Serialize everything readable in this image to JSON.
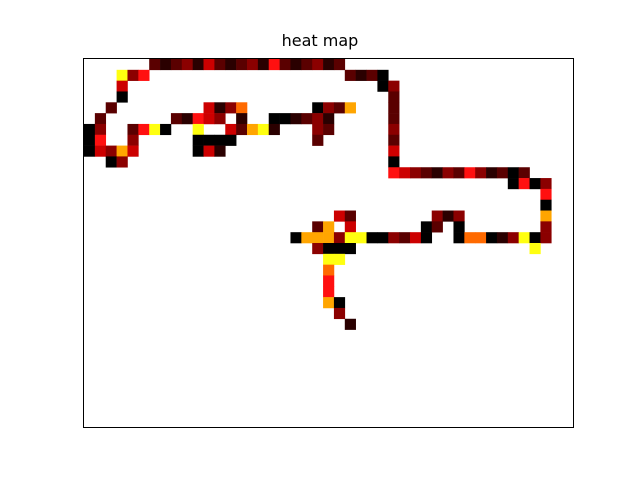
{
  "chart_data": {
    "type": "heatmap",
    "title": "heat map",
    "xlabel": "",
    "ylabel": "",
    "grid": false,
    "legend": "none",
    "axis_ticks": "none",
    "n_cols": 45,
    "n_rows": 34,
    "colormap": "hot",
    "colors": {
      "1": "#2a0000",
      "2": "#5a0000",
      "3": "#8b0000",
      "4": "#cc0000",
      "5": "#ff1010",
      "6": "#ff6a00",
      "7": "#ffa500",
      "8": "#ffff10",
      "9": "#000000"
    },
    "cells": [
      [
        6,
        0,
        2
      ],
      [
        7,
        0,
        1
      ],
      [
        8,
        0,
        2
      ],
      [
        9,
        0,
        3
      ],
      [
        10,
        0,
        1
      ],
      [
        11,
        0,
        4
      ],
      [
        12,
        0,
        2
      ],
      [
        13,
        0,
        1
      ],
      [
        14,
        0,
        2
      ],
      [
        15,
        0,
        3
      ],
      [
        16,
        0,
        1
      ],
      [
        17,
        0,
        5
      ],
      [
        18,
        0,
        2
      ],
      [
        19,
        0,
        1
      ],
      [
        20,
        0,
        2
      ],
      [
        21,
        0,
        3
      ],
      [
        22,
        0,
        1
      ],
      [
        23,
        0,
        2
      ],
      [
        3,
        1,
        8
      ],
      [
        4,
        1,
        3
      ],
      [
        5,
        1,
        5
      ],
      [
        24,
        1,
        2
      ],
      [
        25,
        1,
        1
      ],
      [
        26,
        1,
        2
      ],
      [
        27,
        1,
        9
      ],
      [
        3,
        2,
        4
      ],
      [
        27,
        2,
        9
      ],
      [
        28,
        2,
        3
      ],
      [
        3,
        3,
        9
      ],
      [
        28,
        3,
        2
      ],
      [
        2,
        4,
        2
      ],
      [
        11,
        4,
        4
      ],
      [
        12,
        4,
        1
      ],
      [
        13,
        4,
        3
      ],
      [
        14,
        4,
        6
      ],
      [
        21,
        4,
        9
      ],
      [
        22,
        4,
        3
      ],
      [
        23,
        4,
        2
      ],
      [
        24,
        4,
        7
      ],
      [
        28,
        4,
        2
      ],
      [
        1,
        5,
        2
      ],
      [
        8,
        5,
        2
      ],
      [
        9,
        5,
        1
      ],
      [
        10,
        5,
        5
      ],
      [
        11,
        5,
        4
      ],
      [
        12,
        5,
        3
      ],
      [
        14,
        5,
        1
      ],
      [
        17,
        5,
        9
      ],
      [
        18,
        5,
        9
      ],
      [
        19,
        5,
        1
      ],
      [
        20,
        5,
        2
      ],
      [
        21,
        5,
        3
      ],
      [
        22,
        5,
        1
      ],
      [
        28,
        5,
        2
      ],
      [
        0,
        6,
        9
      ],
      [
        1,
        6,
        3
      ],
      [
        4,
        6,
        2
      ],
      [
        5,
        6,
        5
      ],
      [
        6,
        6,
        8
      ],
      [
        7,
        6,
        9
      ],
      [
        10,
        6,
        8
      ],
      [
        13,
        6,
        4
      ],
      [
        14,
        6,
        2
      ],
      [
        15,
        6,
        7
      ],
      [
        16,
        6,
        8
      ],
      [
        17,
        6,
        1
      ],
      [
        21,
        6,
        3
      ],
      [
        22,
        6,
        2
      ],
      [
        28,
        6,
        3
      ],
      [
        0,
        7,
        9
      ],
      [
        1,
        7,
        5
      ],
      [
        4,
        7,
        3
      ],
      [
        10,
        7,
        9
      ],
      [
        11,
        7,
        9
      ],
      [
        12,
        7,
        9
      ],
      [
        13,
        7,
        9
      ],
      [
        21,
        7,
        2
      ],
      [
        28,
        7,
        2
      ],
      [
        0,
        8,
        9
      ],
      [
        1,
        8,
        4
      ],
      [
        2,
        8,
        3
      ],
      [
        3,
        8,
        7
      ],
      [
        4,
        8,
        4
      ],
      [
        10,
        8,
        9
      ],
      [
        11,
        8,
        4
      ],
      [
        12,
        8,
        1
      ],
      [
        28,
        8,
        4
      ],
      [
        2,
        9,
        9
      ],
      [
        3,
        9,
        3
      ],
      [
        28,
        9,
        9
      ],
      [
        28,
        10,
        5
      ],
      [
        29,
        10,
        4
      ],
      [
        30,
        10,
        3
      ],
      [
        31,
        10,
        2
      ],
      [
        32,
        10,
        1
      ],
      [
        33,
        10,
        3
      ],
      [
        34,
        10,
        2
      ],
      [
        35,
        10,
        5
      ],
      [
        36,
        10,
        3
      ],
      [
        37,
        10,
        1
      ],
      [
        38,
        10,
        2
      ],
      [
        39,
        10,
        9
      ],
      [
        40,
        10,
        2
      ],
      [
        39,
        11,
        9
      ],
      [
        40,
        11,
        5
      ],
      [
        41,
        11,
        9
      ],
      [
        42,
        11,
        3
      ],
      [
        42,
        12,
        5
      ],
      [
        42,
        13,
        9
      ],
      [
        23,
        14,
        4
      ],
      [
        24,
        14,
        2
      ],
      [
        32,
        14,
        3
      ],
      [
        33,
        14,
        1
      ],
      [
        34,
        14,
        3
      ],
      [
        42,
        14,
        7
      ],
      [
        21,
        15,
        2
      ],
      [
        22,
        15,
        7
      ],
      [
        24,
        15,
        4
      ],
      [
        31,
        15,
        9
      ],
      [
        32,
        15,
        2
      ],
      [
        34,
        15,
        9
      ],
      [
        42,
        15,
        3
      ],
      [
        19,
        16,
        9
      ],
      [
        20,
        16,
        7
      ],
      [
        21,
        16,
        7
      ],
      [
        22,
        16,
        7
      ],
      [
        23,
        16,
        3
      ],
      [
        24,
        16,
        8
      ],
      [
        25,
        16,
        8
      ],
      [
        26,
        16,
        9
      ],
      [
        27,
        16,
        9
      ],
      [
        28,
        16,
        3
      ],
      [
        29,
        16,
        2
      ],
      [
        30,
        16,
        4
      ],
      [
        31,
        16,
        9
      ],
      [
        34,
        16,
        9
      ],
      [
        35,
        16,
        6
      ],
      [
        36,
        16,
        6
      ],
      [
        37,
        16,
        9
      ],
      [
        38,
        16,
        1
      ],
      [
        39,
        16,
        3
      ],
      [
        40,
        16,
        8
      ],
      [
        41,
        16,
        9
      ],
      [
        42,
        16,
        3
      ],
      [
        21,
        17,
        3
      ],
      [
        22,
        17,
        9
      ],
      [
        23,
        17,
        9
      ],
      [
        24,
        17,
        9
      ],
      [
        41,
        17,
        8
      ],
      [
        22,
        18,
        8
      ],
      [
        23,
        18,
        8
      ],
      [
        22,
        19,
        6
      ],
      [
        22,
        20,
        5
      ],
      [
        22,
        21,
        5
      ],
      [
        22,
        22,
        7
      ],
      [
        23,
        22,
        9
      ],
      [
        23,
        23,
        3
      ],
      [
        24,
        24,
        1
      ]
    ]
  }
}
